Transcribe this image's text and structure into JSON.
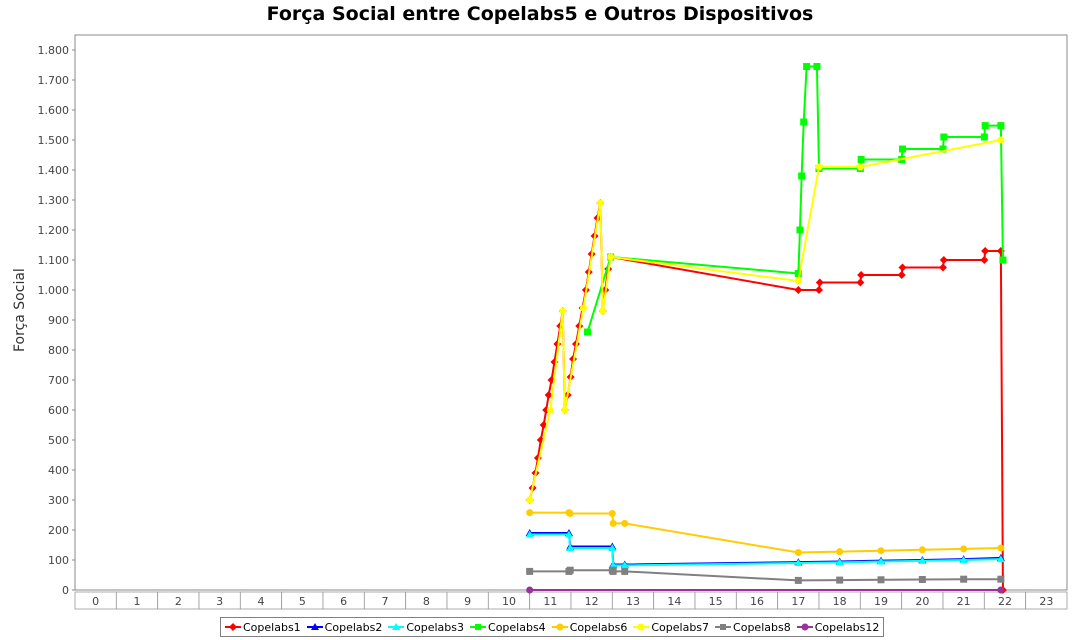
{
  "chart_data": {
    "type": "line",
    "title": "Força Social entre Copelabs5 e Outros Dispositivos",
    "ylabel": "Força Social",
    "xlabel": "",
    "ylim": [
      0,
      1850
    ],
    "yticks": [
      0,
      100,
      200,
      300,
      400,
      500,
      600,
      700,
      800,
      900,
      1000,
      1100,
      1200,
      1300,
      1400,
      1500,
      1600,
      1700,
      1800
    ],
    "ytick_labels": [
      "0",
      "100",
      "200",
      "300",
      "400",
      "500",
      "600",
      "700",
      "800",
      "900",
      "1.000",
      "1.100",
      "1.200",
      "1.300",
      "1.400",
      "1.500",
      "1.600",
      "1.700",
      "1.800"
    ],
    "categories": [
      "0",
      "1",
      "2",
      "3",
      "4",
      "5",
      "6",
      "7",
      "8",
      "9",
      "10",
      "11",
      "12",
      "13",
      "14",
      "15",
      "16",
      "17",
      "18",
      "19",
      "20",
      "21",
      "22",
      "23"
    ],
    "grid": true,
    "legend_position": "bottom",
    "series": [
      {
        "name": "Copelabs1",
        "color": "#ff0000",
        "marker": "diamond",
        "points": [
          [
            10.5,
            300
          ],
          [
            10.57,
            340
          ],
          [
            10.64,
            390
          ],
          [
            10.7,
            440
          ],
          [
            10.77,
            500
          ],
          [
            10.84,
            550
          ],
          [
            10.9,
            600
          ],
          [
            10.96,
            650
          ],
          [
            11.03,
            700
          ],
          [
            11.1,
            760
          ],
          [
            11.17,
            820
          ],
          [
            11.24,
            880
          ],
          [
            11.3,
            930
          ],
          [
            11.35,
            600
          ],
          [
            11.42,
            650
          ],
          [
            11.49,
            710
          ],
          [
            11.55,
            770
          ],
          [
            11.62,
            820
          ],
          [
            11.7,
            880
          ],
          [
            11.78,
            940
          ],
          [
            11.86,
            1000
          ],
          [
            11.93,
            1060
          ],
          [
            12,
            1120
          ],
          [
            12.07,
            1180
          ],
          [
            12.14,
            1240
          ],
          [
            12.21,
            1290
          ],
          [
            12.27,
            930
          ],
          [
            12.33,
            1000
          ],
          [
            12.4,
            1070
          ],
          [
            12.46,
            1110
          ],
          [
            17,
            1000
          ],
          [
            17.5,
            1000
          ],
          [
            17.52,
            1025
          ],
          [
            18.5,
            1025
          ],
          [
            18.52,
            1050
          ],
          [
            19.5,
            1050
          ],
          [
            19.52,
            1075
          ],
          [
            20.5,
            1075
          ],
          [
            20.52,
            1100
          ],
          [
            21.5,
            1100
          ],
          [
            21.52,
            1130
          ],
          [
            21.9,
            1130
          ],
          [
            21.95,
            0
          ]
        ]
      },
      {
        "name": "Copelabs2",
        "color": "#0000ff",
        "marker": "triangle",
        "points": [
          [
            10.5,
            190
          ],
          [
            11.45,
            190
          ],
          [
            11.48,
            145
          ],
          [
            12.5,
            145
          ],
          [
            12.52,
            85
          ],
          [
            12.8,
            85
          ],
          [
            17,
            93
          ],
          [
            18,
            95
          ],
          [
            19,
            98
          ],
          [
            20,
            100
          ],
          [
            21,
            103
          ],
          [
            21.9,
            107
          ]
        ]
      },
      {
        "name": "Copelabs3",
        "color": "#00ffff",
        "marker": "triangle",
        "points": [
          [
            10.5,
            185
          ],
          [
            11.45,
            185
          ],
          [
            11.48,
            140
          ],
          [
            12.5,
            140
          ],
          [
            12.52,
            82
          ],
          [
            12.8,
            82
          ],
          [
            17,
            90
          ],
          [
            18,
            92
          ],
          [
            19,
            95
          ],
          [
            20,
            97
          ],
          [
            21,
            100
          ],
          [
            21.9,
            103
          ]
        ]
      },
      {
        "name": "Copelabs4",
        "color": "#00ff00",
        "marker": "square",
        "points": [
          [
            11.9,
            860
          ],
          [
            12.46,
            1110
          ],
          [
            17,
            1055
          ],
          [
            17.04,
            1200
          ],
          [
            17.08,
            1380
          ],
          [
            17.13,
            1560
          ],
          [
            17.2,
            1745
          ],
          [
            17.45,
            1745
          ],
          [
            17.5,
            1405
          ],
          [
            18.5,
            1405
          ],
          [
            18.52,
            1435
          ],
          [
            19.5,
            1435
          ],
          [
            19.52,
            1470
          ],
          [
            20.5,
            1470
          ],
          [
            20.52,
            1510
          ],
          [
            21.5,
            1510
          ],
          [
            21.52,
            1548
          ],
          [
            21.9,
            1548
          ],
          [
            21.95,
            1100
          ]
        ]
      },
      {
        "name": "Copelabs6",
        "color": "#ffcc00",
        "marker": "circle",
        "points": [
          [
            10.5,
            258
          ],
          [
            11.45,
            258
          ],
          [
            11.48,
            255
          ],
          [
            12.5,
            255
          ],
          [
            12.52,
            222
          ],
          [
            12.8,
            222
          ],
          [
            17,
            125
          ],
          [
            18,
            128
          ],
          [
            19,
            131
          ],
          [
            20,
            134
          ],
          [
            21,
            137
          ],
          [
            21.9,
            140
          ]
        ]
      },
      {
        "name": "Copelabs7",
        "color": "#ffff00",
        "marker": "circle",
        "points": [
          [
            10.5,
            300
          ],
          [
            11,
            600
          ],
          [
            11.3,
            930
          ],
          [
            11.35,
            600
          ],
          [
            11.8,
            940
          ],
          [
            12.21,
            1290
          ],
          [
            12.27,
            930
          ],
          [
            12.46,
            1110
          ],
          [
            17,
            1030
          ],
          [
            17.5,
            1410
          ],
          [
            18.5,
            1410
          ],
          [
            21.9,
            1500
          ]
        ]
      },
      {
        "name": "Copelabs8",
        "color": "#808080",
        "marker": "square",
        "points": [
          [
            10.5,
            62
          ],
          [
            11.45,
            62
          ],
          [
            11.48,
            66
          ],
          [
            12.5,
            66
          ],
          [
            12.52,
            62
          ],
          [
            12.8,
            62
          ],
          [
            17,
            32
          ],
          [
            18,
            33
          ],
          [
            19,
            34
          ],
          [
            20,
            35
          ],
          [
            21,
            36
          ],
          [
            21.9,
            36
          ]
        ]
      },
      {
        "name": "Copelabs12",
        "color": "#993399",
        "marker": "circle",
        "points": [
          [
            10.5,
            0
          ],
          [
            21.9,
            0
          ]
        ]
      }
    ]
  }
}
